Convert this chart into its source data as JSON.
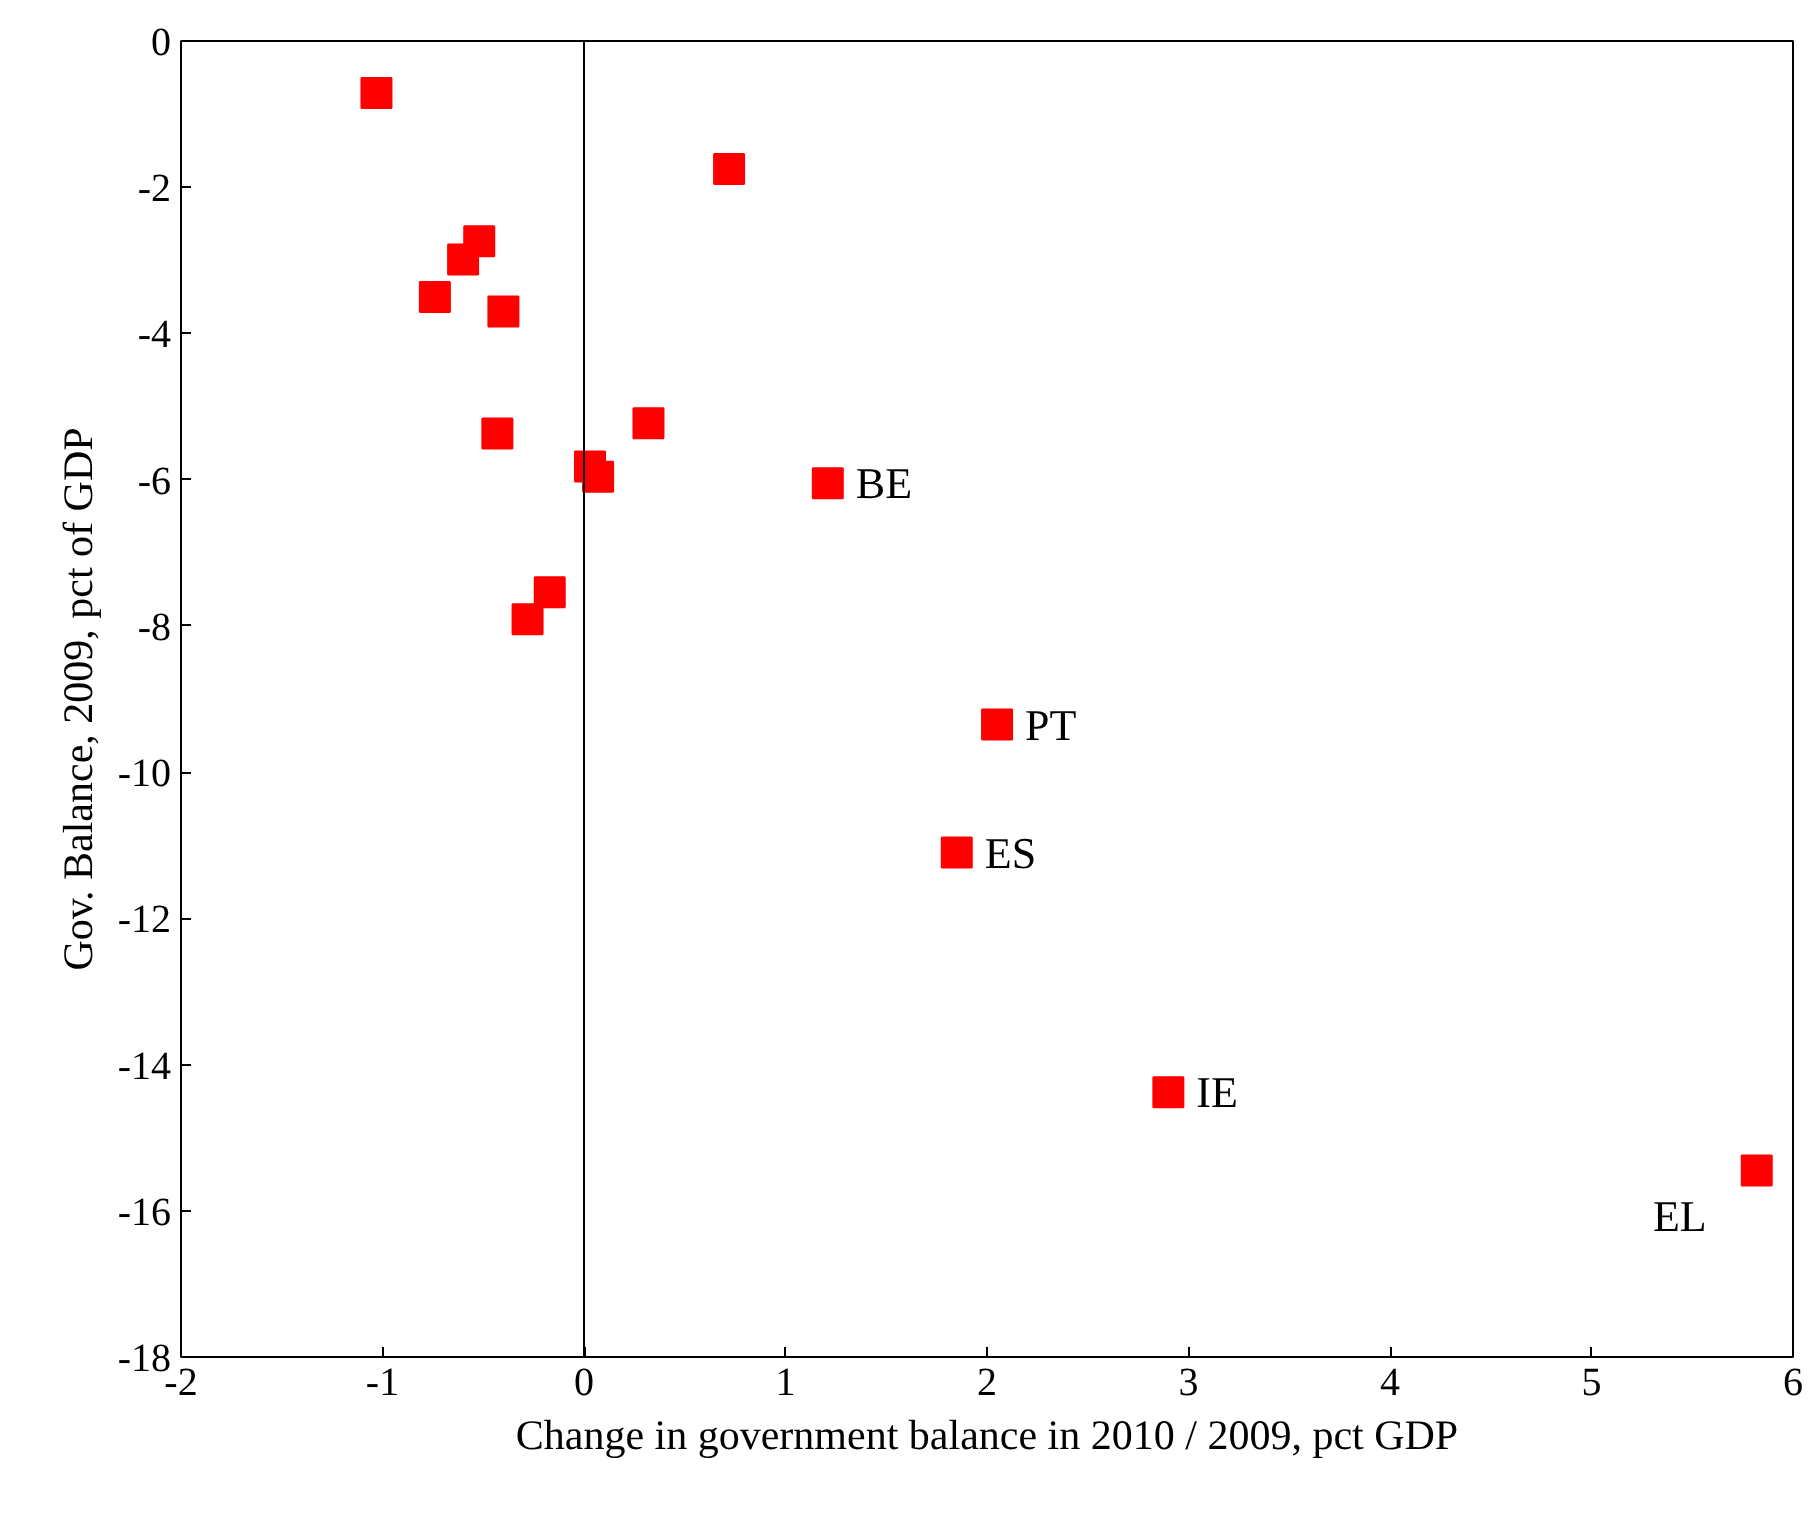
{
  "chart_data": {
    "type": "scatter",
    "xlabel": "Change in government balance in 2010 / 2009, pct GDP",
    "ylabel": "Gov. Balance, 2009, pct of GDP",
    "x": [
      -1.03,
      0.72,
      -0.52,
      -0.6,
      -0.74,
      -0.4,
      -0.43,
      0.32,
      0.03,
      0.07,
      1.21,
      -0.17,
      -0.28,
      2.05,
      1.85,
      2.9,
      5.82
    ],
    "series": [
      {
        "color": "#ff0000",
        "values": [
          -0.71,
          -1.75,
          -2.74,
          -2.99,
          -3.5,
          -3.7,
          -5.37,
          -5.23,
          -5.82,
          -5.96,
          -6.05,
          -7.54,
          -7.91,
          -9.35,
          -11.1,
          -14.38,
          -15.45
        ]
      }
    ],
    "annotations": [
      {
        "text": "BE",
        "x": 1.21,
        "y": -6.05
      },
      {
        "text": "PT",
        "x": 2.05,
        "y": -9.35
      },
      {
        "text": "ES",
        "x": 1.85,
        "y": -11.1
      },
      {
        "text": "IE",
        "x": 2.9,
        "y": -14.38
      },
      {
        "text": "EL",
        "x": 5.82,
        "y": -15.45
      }
    ],
    "xlim": [
      -2,
      6
    ],
    "ylim": [
      -18,
      0
    ],
    "xticks": [
      -2,
      -1,
      0,
      1,
      2,
      3,
      4,
      5,
      6
    ],
    "yticks": [
      -18,
      -16,
      -14,
      -12,
      -10,
      -8,
      -6,
      -4,
      -2,
      0
    ],
    "ref_lines": [
      {
        "axis": "x",
        "value": 0,
        "label": null
      }
    ],
    "marker": "square",
    "grid": false
  }
}
